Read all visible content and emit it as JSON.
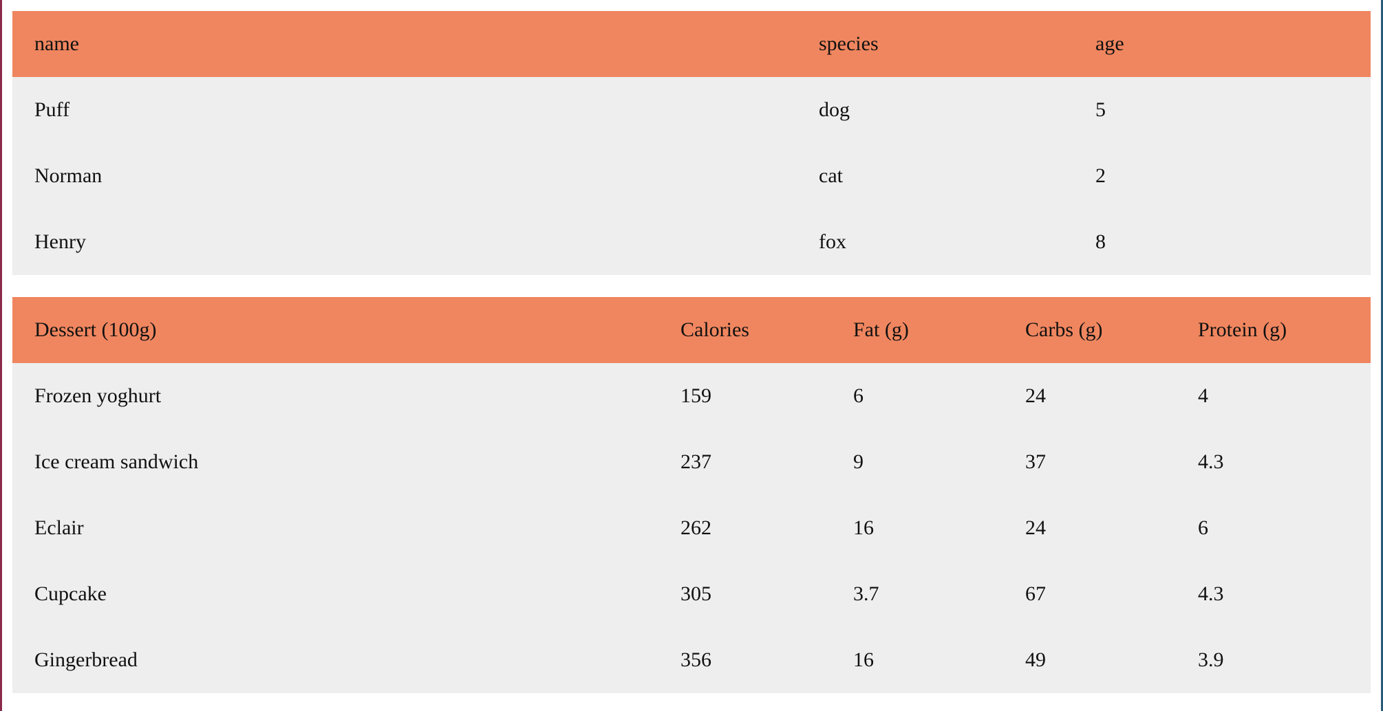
{
  "pets_table": {
    "headers": [
      "name",
      "species",
      "age"
    ],
    "rows": [
      [
        "Puff",
        "dog",
        "5"
      ],
      [
        "Norman",
        "cat",
        "2"
      ],
      [
        "Henry",
        "fox",
        "8"
      ]
    ]
  },
  "desserts_table": {
    "headers": [
      "Dessert (100g)",
      "Calories",
      "Fat (g)",
      "Carbs (g)",
      "Protein (g)"
    ],
    "rows": [
      [
        "Frozen yoghurt",
        "159",
        "6",
        "24",
        "4"
      ],
      [
        "Ice cream sandwich",
        "237",
        "9",
        "37",
        "4.3"
      ],
      [
        "Eclair",
        "262",
        "16",
        "24",
        "6"
      ],
      [
        "Cupcake",
        "305",
        "3.7",
        "67",
        "4.3"
      ],
      [
        "Gingerbread",
        "356",
        "16",
        "49",
        "3.9"
      ]
    ]
  },
  "colors": {
    "header_bg": "#f0865f",
    "row_bg": "#eeeeee"
  }
}
